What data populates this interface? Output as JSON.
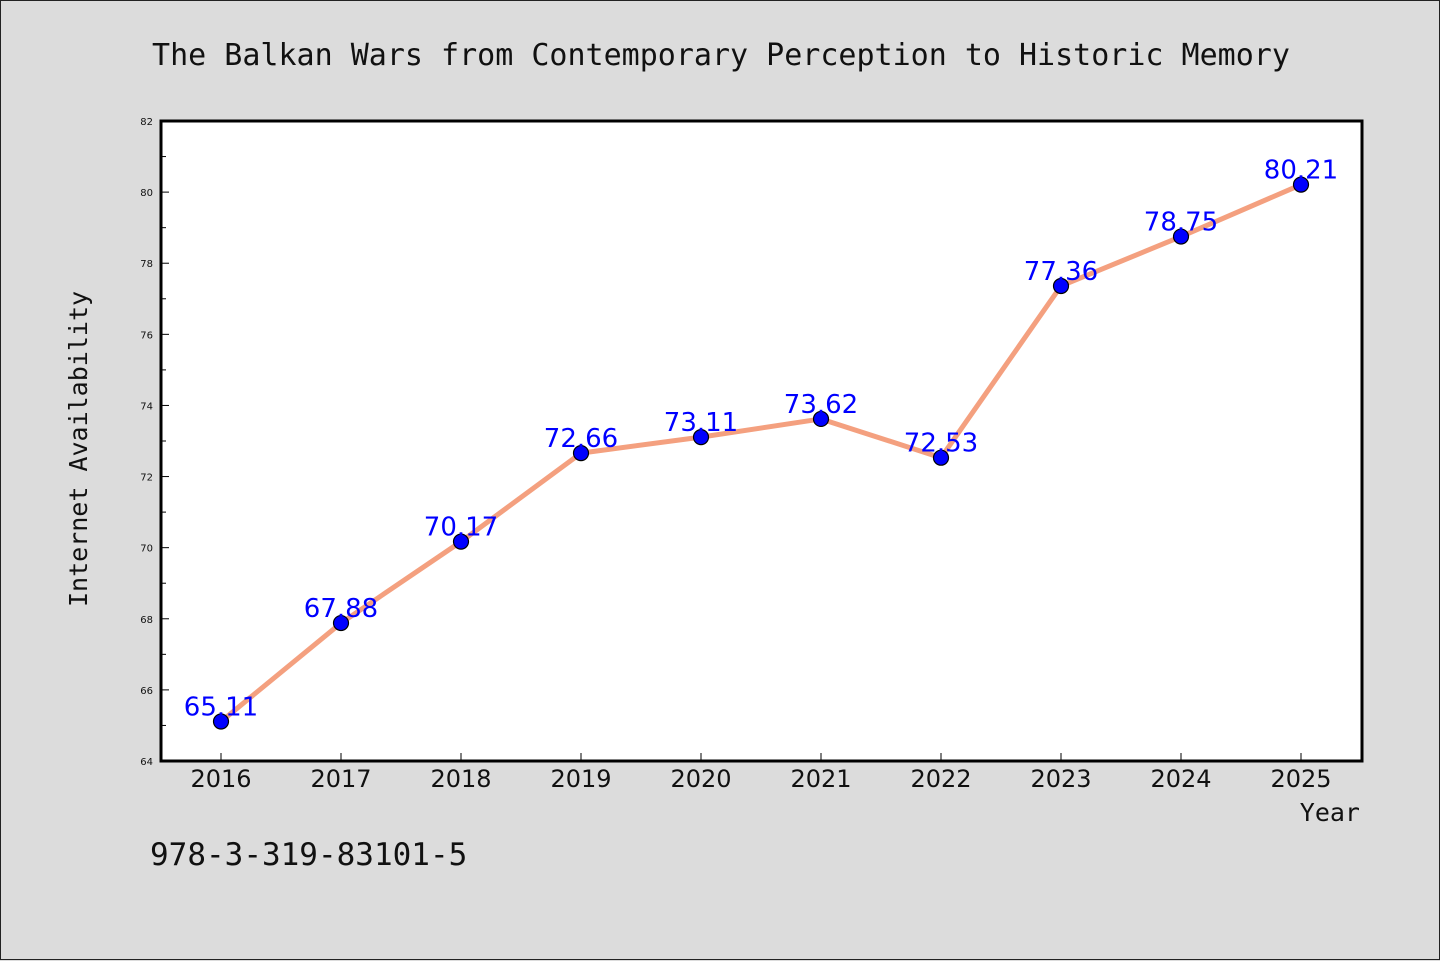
{
  "isbn": "978-3-319-83101-5",
  "chart_data": {
    "type": "line",
    "title": "The Balkan Wars from Contemporary Perception to Historic Memory",
    "xlabel": "Year",
    "ylabel": "Internet Availability",
    "categories": [
      "2016",
      "2017",
      "2018",
      "2019",
      "2020",
      "2021",
      "2022",
      "2023",
      "2024",
      "2025"
    ],
    "values": [
      65.11,
      67.88,
      70.17,
      72.66,
      73.11,
      73.62,
      72.53,
      77.36,
      78.75,
      80.21
    ],
    "data_labels": [
      "65.11",
      "67.88",
      "70.17",
      "72.66",
      "73.11",
      "73.62",
      "72.53",
      "77.36",
      "78.75",
      "80.21"
    ],
    "ylim": [
      64,
      82
    ],
    "yticks": [
      "64",
      "66",
      "68",
      "70",
      "72",
      "74",
      "76",
      "78",
      "80",
      "82"
    ],
    "grid": false,
    "line_color": "#f4a07f",
    "marker_color": "#0000ff",
    "label_color": "#0000ff",
    "plot_background": "#ffffff",
    "page_background": "#dcdcdc"
  }
}
